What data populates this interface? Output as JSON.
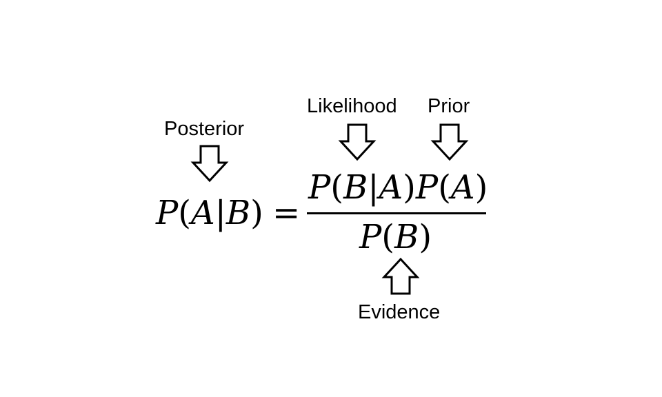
{
  "labels": {
    "posterior": "Posterior",
    "likelihood": "Likelihood",
    "prior": "Prior",
    "evidence": "Evidence"
  },
  "equation": {
    "lhs": {
      "v1": "P",
      "open": "(",
      "v2": "A",
      "bar": "|",
      "v3": "B",
      "close": ")"
    },
    "equals": "=",
    "numerator": {
      "t1": {
        "v1": "P",
        "open": "(",
        "v2": "B",
        "bar": "|",
        "v3": "A",
        "close": ")"
      },
      "t2": {
        "v1": "P",
        "open": "(",
        "v2": "A",
        "close": ")"
      }
    },
    "denominator": {
      "v1": "P",
      "open": "(",
      "v2": "B",
      "close": ")"
    }
  },
  "arrows": {
    "posterior": "down-arrow-icon",
    "likelihood": "down-arrow-icon",
    "prior": "down-arrow-icon",
    "evidence": "up-arrow-icon"
  },
  "colors": {
    "ink": "#000000",
    "background": "#ffffff"
  }
}
